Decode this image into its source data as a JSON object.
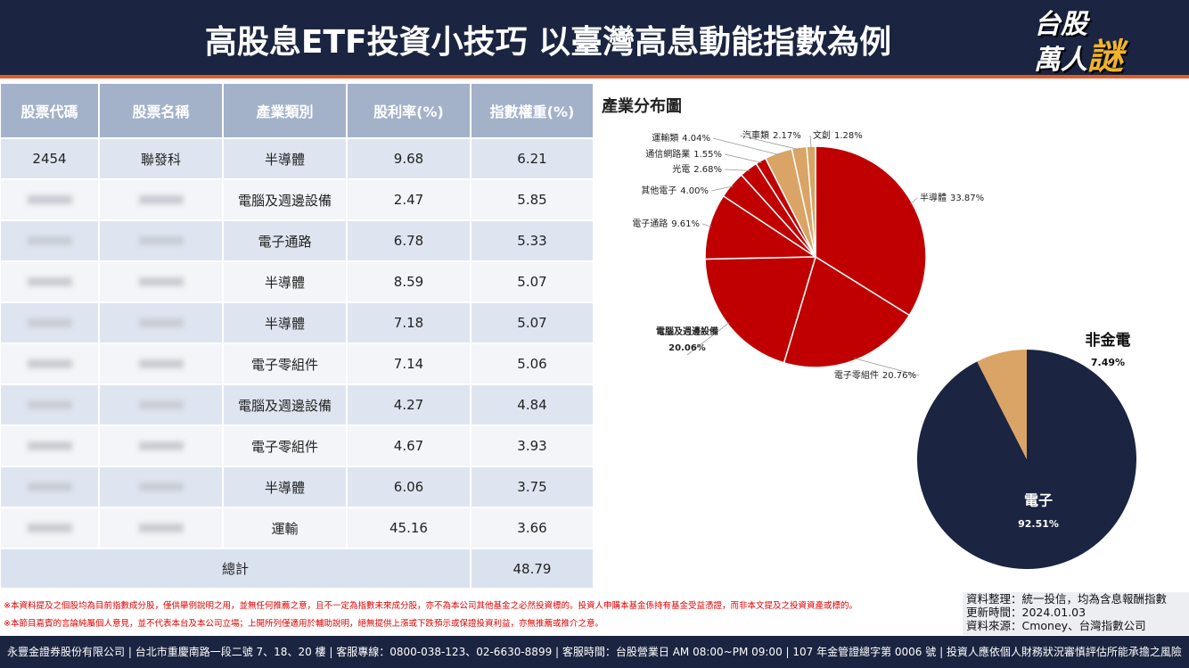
{
  "header": {
    "title": "高股息ETF投資小技巧 以臺灣高息動能指數為例",
    "logo": [
      "台股",
      "萬人",
      "謎"
    ]
  },
  "table": {
    "columns": [
      "股票代碼",
      "股票名稱",
      "產業類別",
      "股利率(%)",
      "指數權重(%)"
    ],
    "rows": [
      [
        "2454",
        "聯發科",
        "半導體",
        "9.68",
        "6.21"
      ],
      [
        null,
        null,
        "電腦及週邊設備",
        "2.47",
        "5.85"
      ],
      [
        null,
        null,
        "電子通路",
        "6.78",
        "5.33"
      ],
      [
        null,
        null,
        "半導體",
        "8.59",
        "5.07"
      ],
      [
        null,
        null,
        "半導體",
        "7.18",
        "5.07"
      ],
      [
        null,
        null,
        "電子零組件",
        "7.14",
        "5.06"
      ],
      [
        null,
        null,
        "電腦及週邊設備",
        "4.27",
        "4.84"
      ],
      [
        null,
        null,
        "電子零組件",
        "4.67",
        "3.93"
      ],
      [
        null,
        null,
        "半導體",
        "6.06",
        "3.75"
      ],
      [
        null,
        null,
        "運輸",
        "45.16",
        "3.66"
      ]
    ],
    "total": [
      "總計",
      "48.79"
    ]
  },
  "chart_data": [
    {
      "type": "pie",
      "title": "產業分布圖",
      "categories": [
        "半導體",
        "電子零組件",
        "電腦及週邊設備",
        "電子通路",
        "其他電子",
        "光電",
        "通信網路業",
        "運輸類",
        "汽車類",
        "文創"
      ],
      "values": [
        33.87,
        20.76,
        20.06,
        9.61,
        4.0,
        2.68,
        1.55,
        4.04,
        2.17,
        1.28
      ],
      "value_labels": [
        "33.87%",
        "20.76%",
        "20.06%",
        "9.61%",
        "4.00%",
        "2.68%",
        "1.55%",
        "4.04%",
        "2.17%",
        "1.28%"
      ],
      "colors": [
        "#c00000",
        "#c00000",
        "#c00000",
        "#c00000",
        "#c00000",
        "#c00000",
        "#c00000",
        "#d9a465",
        "#d9a465",
        "#d9a465"
      ]
    },
    {
      "type": "pie",
      "categories": [
        "電子",
        "非金電"
      ],
      "values": [
        92.51,
        7.49
      ],
      "value_labels": [
        "92.51%",
        "7.49%"
      ],
      "colors": [
        "#1b2440",
        "#d9a465"
      ]
    }
  ],
  "notes": [
    "※本資料提及之個股均為目前指數成分股，僅供舉例說明之用，並無任何推薦之意，且不一定為指數未來成分股，亦不為本公司其他基金之必然投資標的。投資人申購本基金係持有基金受益憑證，而非本文提及之投資資產或標的。",
    "※本節目嘉賓的言論純屬個人意見，並不代表本台及本公司立場；上開所列僅適用於輔助說明，絕無提供上漲或下跌預示或保證投資利益，亦無推薦或推介之意。"
  ],
  "source": [
    "資料整理：統一投信，均為含息報酬指數",
    "更新時間：2024.01.03",
    "資料來源：Cmoney、台灣指數公司"
  ],
  "footer": "永豐金證券股份有限公司 | 台北市重慶南路一段二號 7、18、20 樓 | 客服專線：0800-038-123、02-6630-8899 | 客服時間：台股營業日 AM 08:00~PM 09:00 | 107 年金管證總字第 0006 號 | 投資人應依個人財務狀況審慎評估所能承擔之風險"
}
